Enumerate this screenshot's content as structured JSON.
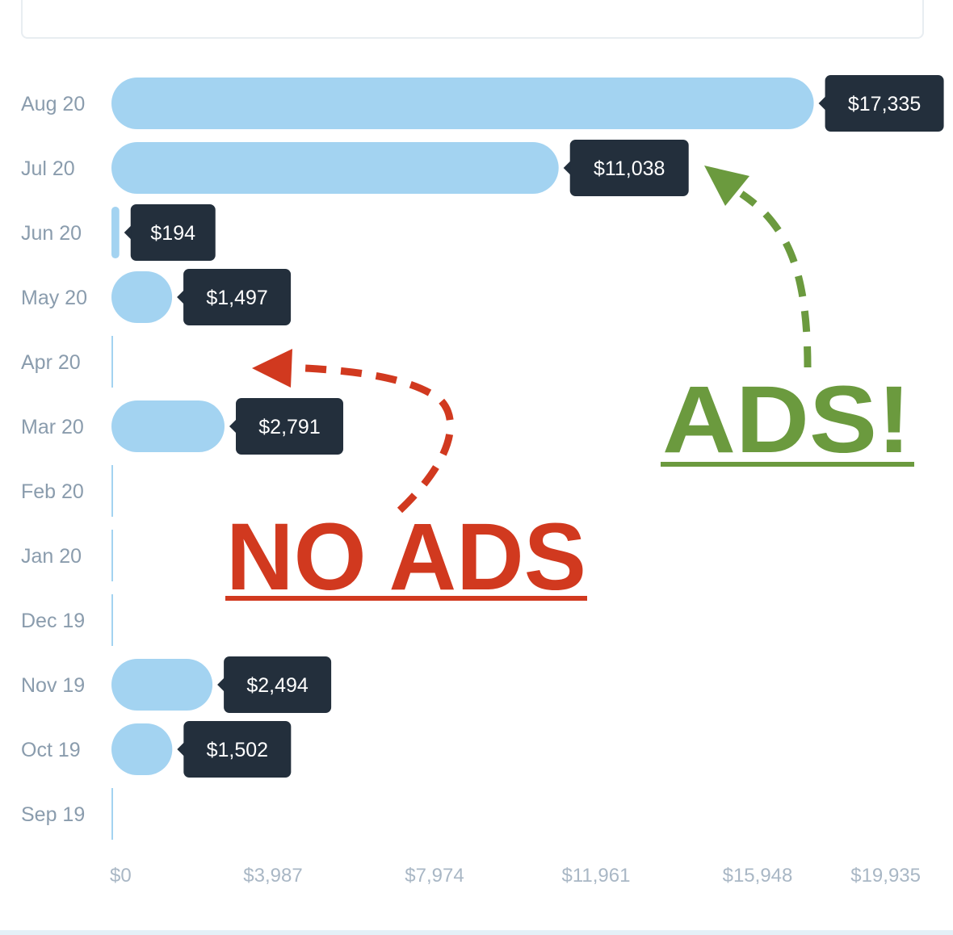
{
  "chart_data": {
    "type": "bar",
    "orientation": "horizontal",
    "categories": [
      "Aug 20",
      "Jul 20",
      "Jun 20",
      "May 20",
      "Apr 20",
      "Mar 20",
      "Feb 20",
      "Jan 20",
      "Dec 19",
      "Nov 19",
      "Oct 19",
      "Sep 19"
    ],
    "values": [
      17335,
      11038,
      194,
      1497,
      0,
      2791,
      0,
      0,
      0,
      2494,
      1502,
      0
    ],
    "data_labels": [
      "$17,335",
      "$11,038",
      "$194",
      "$1,497",
      "",
      "$2,791",
      "",
      "",
      "",
      "$2,494",
      "$1,502",
      ""
    ],
    "x_ticks": [
      "$0",
      "$3,987",
      "$7,974",
      "$11,961",
      "$15,948",
      "$19,935"
    ],
    "x_tick_values": [
      0,
      3987,
      7974,
      11961,
      15948,
      19935
    ],
    "xlim": [
      0,
      19935
    ],
    "grid": false,
    "colors": {
      "bar": "#a3d3f1",
      "tooltip": "#232f3c",
      "category_text": "#8a9cad",
      "tick_text": "#a9b7c5"
    },
    "annotations": [
      {
        "text": "NO ADS",
        "color": "#d1391f",
        "style": "bold underlined",
        "arrow": "dashed, points to Apr 20"
      },
      {
        "text": "ADS!",
        "color": "#6b9a3e",
        "style": "bold underlined",
        "arrow": "dashed, points to Jul 20"
      }
    ]
  }
}
